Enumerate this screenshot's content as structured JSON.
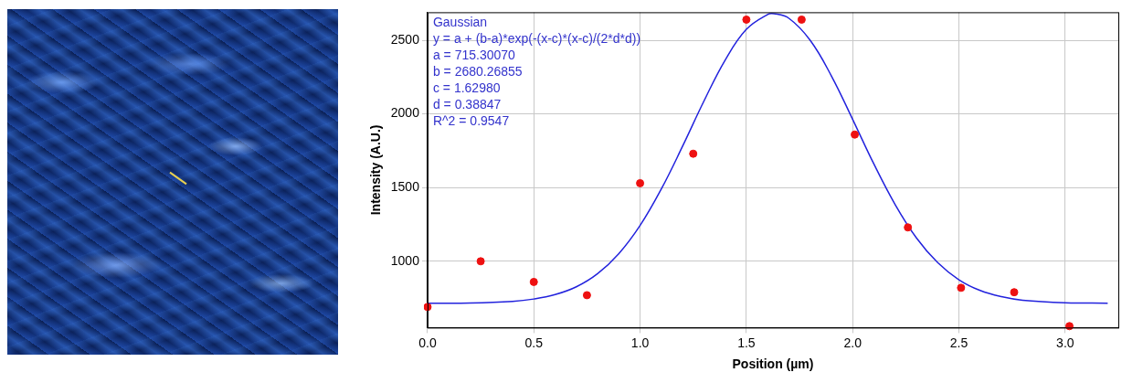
{
  "chart_data": {
    "type": "scatter",
    "x_label": "Position (µm)",
    "y_label": "Intensity (A.U.)",
    "annotation": [
      "Gaussian",
      "y = a + (b-a)*exp(-(x-c)*(x-c)/(2*d*d))",
      "a = 715.30070",
      "b = 2680.26855",
      "c = 1.62980",
      "d = 0.38847",
      "R^2 = 0.9547"
    ],
    "series": [
      {
        "type": "scatter",
        "color": "#ee1111",
        "marker": "circle",
        "x": [
          0.0,
          0.25,
          0.5,
          0.75,
          1.0,
          1.25,
          1.5,
          1.76,
          2.01,
          2.26,
          2.51,
          2.76,
          3.02
        ],
        "values": [
          690,
          1000,
          860,
          770,
          1530,
          1730,
          2640,
          2640,
          1860,
          1230,
          820,
          790,
          560
        ]
      },
      {
        "type": "line",
        "color": "#2222dd",
        "line_style": "solid",
        "x": [
          0.0,
          0.2,
          0.4,
          0.5,
          0.6,
          0.7,
          0.8,
          0.9,
          1.0,
          1.1,
          1.2,
          1.3,
          1.4,
          1.5,
          1.6,
          1.63,
          1.7,
          1.8,
          1.9,
          2.0,
          2.1,
          2.2,
          2.3,
          2.4,
          2.5,
          2.6,
          2.7,
          2.8,
          3.0,
          3.2
        ],
        "values": [
          716,
          717,
          728,
          744,
          774,
          827,
          916,
          1052,
          1243,
          1491,
          1781,
          2086,
          2365,
          2574,
          2675,
          2680,
          2649,
          2500,
          2258,
          1963,
          1660,
          1385,
          1159,
          991,
          875,
          802,
          760,
          736,
          719,
          716
        ]
      }
    ],
    "xlim": [
      0,
      3.25
    ],
    "xticks": [
      {
        "value": 0,
        "label": "0.0"
      },
      {
        "value": 0.5,
        "label": "0.5"
      },
      {
        "value": 1,
        "label": "1.0"
      },
      {
        "value": 1.5,
        "label": "1.5"
      },
      {
        "value": 2,
        "label": "2.0"
      },
      {
        "value": 2.5,
        "label": "2.5"
      },
      {
        "value": 3,
        "label": "3.0"
      }
    ],
    "ylim": [
      550,
      2690
    ],
    "yticks": [
      1000,
      1500,
      2000,
      2500
    ],
    "grid": true
  }
}
